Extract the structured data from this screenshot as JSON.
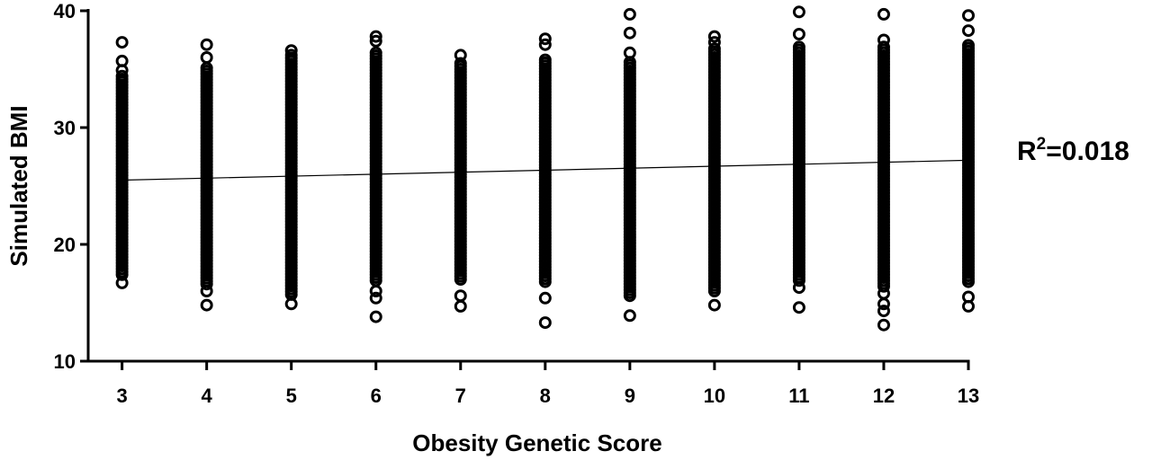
{
  "chart_data": {
    "type": "scatter",
    "title": "",
    "xlabel": "Obesity Genetic Score",
    "ylabel": "Simulated BMI",
    "xlim": [
      2.6,
      13.0
    ],
    "ylim": [
      10,
      40
    ],
    "x_ticks": [
      3,
      4,
      5,
      6,
      7,
      8,
      9,
      10,
      11,
      12,
      13
    ],
    "y_ticks": [
      10,
      20,
      30,
      40
    ],
    "grid": false,
    "legend": "none",
    "fit_line": {
      "x": [
        3,
        13
      ],
      "y": [
        25.5,
        27.2
      ]
    },
    "annotation": {
      "base": "R",
      "superscript": "2",
      "text": "=0.018"
    },
    "columns": [
      {
        "x": 3,
        "dense_range": [
          17.4,
          34.6
        ],
        "outliers": [
          37.3,
          35.7,
          34.9,
          16.7
        ]
      },
      {
        "x": 4,
        "dense_range": [
          16.6,
          35.3
        ],
        "outliers": [
          37.1,
          36.0,
          16.0,
          14.8
        ]
      },
      {
        "x": 5,
        "dense_range": [
          15.7,
          36.2
        ],
        "outliers": [
          36.6,
          14.9
        ]
      },
      {
        "x": 6,
        "dense_range": [
          16.9,
          36.4
        ],
        "outliers": [
          37.8,
          37.4,
          16.0,
          15.4,
          13.8
        ]
      },
      {
        "x": 7,
        "dense_range": [
          17.0,
          35.6
        ],
        "outliers": [
          36.2,
          15.6,
          14.7
        ]
      },
      {
        "x": 8,
        "dense_range": [
          16.8,
          36.0
        ],
        "outliers": [
          37.6,
          37.1,
          15.4,
          13.3
        ]
      },
      {
        "x": 9,
        "dense_range": [
          15.6,
          35.8
        ],
        "outliers": [
          39.7,
          38.1,
          36.4,
          13.9
        ]
      },
      {
        "x": 10,
        "dense_range": [
          16.0,
          36.8
        ],
        "outliers": [
          37.8,
          37.3,
          14.8
        ]
      },
      {
        "x": 11,
        "dense_range": [
          16.9,
          37.0
        ],
        "outliers": [
          39.9,
          38.0,
          16.3,
          14.6
        ]
      },
      {
        "x": 12,
        "dense_range": [
          16.4,
          37.1
        ],
        "outliers": [
          39.7,
          37.5,
          15.8,
          14.9,
          14.3,
          13.1
        ]
      },
      {
        "x": 13,
        "dense_range": [
          16.8,
          37.2
        ],
        "outliers": [
          39.6,
          38.3,
          15.5,
          14.7
        ]
      }
    ],
    "point_color": "#000000"
  }
}
